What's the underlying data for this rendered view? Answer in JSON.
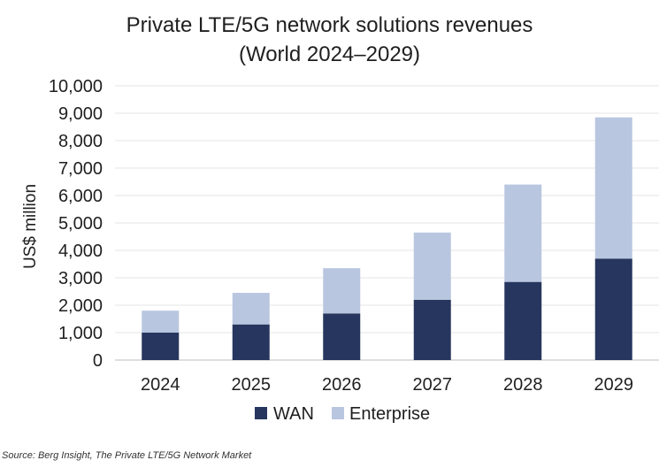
{
  "chart_data": {
    "type": "bar",
    "stacked": true,
    "title": "Private LTE/5G network solutions revenues",
    "subtitle": "(World 2024–2029)",
    "xlabel": "",
    "ylabel": "US$ million",
    "categories": [
      "2024",
      "2025",
      "2026",
      "2027",
      "2028",
      "2029"
    ],
    "series": [
      {
        "name": "WAN",
        "color": "#26365e",
        "values": [
          1000,
          1300,
          1700,
          2200,
          2850,
          3700
        ]
      },
      {
        "name": "Enterprise",
        "color": "#b9c6e0",
        "values": [
          800,
          1150,
          1650,
          2450,
          3550,
          5150
        ]
      }
    ],
    "ylim": [
      0,
      10000
    ],
    "yticks": [
      0,
      1000,
      2000,
      3000,
      4000,
      5000,
      6000,
      7000,
      8000,
      9000,
      10000
    ],
    "ytick_labels": [
      "0",
      "1,000",
      "2,000",
      "3,000",
      "4,000",
      "5,000",
      "6,000",
      "7,000",
      "8,000",
      "9,000",
      "10,000"
    ],
    "grid": true,
    "legend_position": "bottom"
  },
  "source": "Source: Berg Insight, The Private LTE/5G Network Market"
}
